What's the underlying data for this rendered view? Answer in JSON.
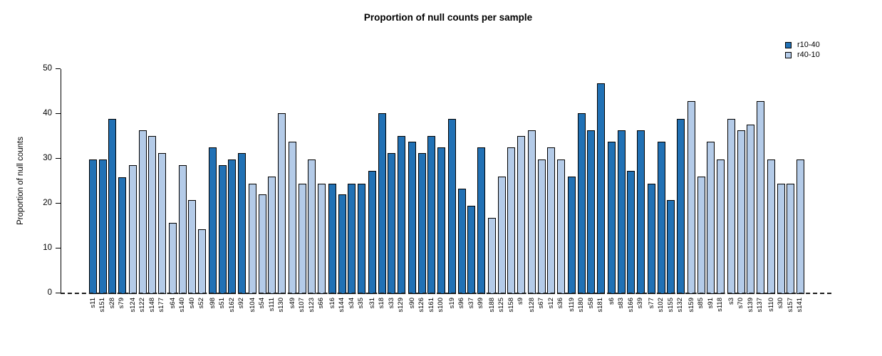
{
  "chart_data": {
    "type": "bar",
    "title": "Proportion of null counts per sample",
    "ylabel": "Proportion of null counts",
    "xlabel": "",
    "ylim": [
      0,
      50
    ],
    "yticks": [
      0,
      10,
      20,
      30,
      40,
      50
    ],
    "grid": false,
    "legend_position": "top-right",
    "baseline": {
      "y": 0,
      "style": "dashed"
    },
    "group_size": 4,
    "series": [
      {
        "name": "r10-40",
        "color": "#2171b5"
      },
      {
        "name": "r40-10",
        "color": "#b4cbe8"
      }
    ],
    "bars": [
      {
        "label": "s11",
        "value": 29.8,
        "series": "r10-40"
      },
      {
        "label": "s151",
        "value": 29.8,
        "series": "r10-40"
      },
      {
        "label": "s28",
        "value": 38.9,
        "series": "r10-40"
      },
      {
        "label": "s79",
        "value": 25.9,
        "series": "r10-40"
      },
      {
        "label": "s124",
        "value": 28.5,
        "series": "r40-10"
      },
      {
        "label": "s122",
        "value": 36.4,
        "series": "r40-10"
      },
      {
        "label": "s148",
        "value": 35.1,
        "series": "r40-10"
      },
      {
        "label": "s177",
        "value": 31.3,
        "series": "r40-10"
      },
      {
        "label": "s64",
        "value": 15.7,
        "series": "r40-10"
      },
      {
        "label": "s140",
        "value": 28.5,
        "series": "r40-10"
      },
      {
        "label": "s40",
        "value": 20.8,
        "series": "r40-10"
      },
      {
        "label": "s52",
        "value": 14.3,
        "series": "r40-10"
      },
      {
        "label": "s98",
        "value": 32.6,
        "series": "r10-40"
      },
      {
        "label": "s51",
        "value": 28.5,
        "series": "r10-40"
      },
      {
        "label": "s162",
        "value": 29.8,
        "series": "r10-40"
      },
      {
        "label": "s92",
        "value": 31.2,
        "series": "r10-40"
      },
      {
        "label": "s104",
        "value": 24.5,
        "series": "r40-10"
      },
      {
        "label": "s54",
        "value": 22.1,
        "series": "r40-10"
      },
      {
        "label": "s111",
        "value": 26.0,
        "series": "r40-10"
      },
      {
        "label": "s130",
        "value": 40.2,
        "series": "r40-10"
      },
      {
        "label": "s49",
        "value": 33.8,
        "series": "r40-10"
      },
      {
        "label": "s107",
        "value": 24.5,
        "series": "r40-10"
      },
      {
        "label": "s123",
        "value": 29.8,
        "series": "r40-10"
      },
      {
        "label": "s66",
        "value": 24.5,
        "series": "r40-10"
      },
      {
        "label": "s16",
        "value": 24.5,
        "series": "r10-40"
      },
      {
        "label": "s144",
        "value": 22.1,
        "series": "r10-40"
      },
      {
        "label": "s34",
        "value": 24.5,
        "series": "r10-40"
      },
      {
        "label": "s35",
        "value": 24.5,
        "series": "r10-40"
      },
      {
        "label": "s31",
        "value": 27.3,
        "series": "r10-40"
      },
      {
        "label": "s18",
        "value": 40.2,
        "series": "r10-40"
      },
      {
        "label": "s33",
        "value": 31.2,
        "series": "r10-40"
      },
      {
        "label": "s129",
        "value": 35.0,
        "series": "r10-40"
      },
      {
        "label": "s90",
        "value": 33.8,
        "series": "r10-40"
      },
      {
        "label": "s126",
        "value": 31.2,
        "series": "r10-40"
      },
      {
        "label": "s161",
        "value": 35.0,
        "series": "r10-40"
      },
      {
        "label": "s100",
        "value": 32.5,
        "series": "r10-40"
      },
      {
        "label": "s19",
        "value": 38.9,
        "series": "r10-40"
      },
      {
        "label": "s96",
        "value": 23.4,
        "series": "r10-40"
      },
      {
        "label": "s37",
        "value": 19.6,
        "series": "r10-40"
      },
      {
        "label": "s99",
        "value": 32.5,
        "series": "r10-40"
      },
      {
        "label": "s188",
        "value": 16.9,
        "series": "r40-10"
      },
      {
        "label": "s125",
        "value": 26.0,
        "series": "r40-10"
      },
      {
        "label": "s158",
        "value": 32.5,
        "series": "r40-10"
      },
      {
        "label": "s9",
        "value": 35.0,
        "series": "r40-10"
      },
      {
        "label": "s128",
        "value": 36.4,
        "series": "r40-10"
      },
      {
        "label": "s67",
        "value": 29.8,
        "series": "r40-10"
      },
      {
        "label": "s12",
        "value": 32.5,
        "series": "r40-10"
      },
      {
        "label": "s36",
        "value": 29.8,
        "series": "r40-10"
      },
      {
        "label": "s119",
        "value": 26.0,
        "series": "r10-40"
      },
      {
        "label": "s180",
        "value": 40.2,
        "series": "r10-40"
      },
      {
        "label": "s58",
        "value": 36.4,
        "series": "r10-40"
      },
      {
        "label": "s181",
        "value": 46.8,
        "series": "r10-40"
      },
      {
        "label": "s6",
        "value": 33.8,
        "series": "r10-40"
      },
      {
        "label": "s83",
        "value": 36.4,
        "series": "r10-40"
      },
      {
        "label": "s166",
        "value": 27.3,
        "series": "r10-40"
      },
      {
        "label": "s39",
        "value": 36.4,
        "series": "r10-40"
      },
      {
        "label": "s77",
        "value": 24.5,
        "series": "r10-40"
      },
      {
        "label": "s102",
        "value": 33.8,
        "series": "r10-40"
      },
      {
        "label": "s155",
        "value": 20.8,
        "series": "r10-40"
      },
      {
        "label": "s132",
        "value": 38.9,
        "series": "r10-40"
      },
      {
        "label": "s159",
        "value": 42.9,
        "series": "r40-10"
      },
      {
        "label": "s85",
        "value": 26.0,
        "series": "r40-10"
      },
      {
        "label": "s91",
        "value": 33.8,
        "series": "r40-10"
      },
      {
        "label": "s118",
        "value": 29.8,
        "series": "r40-10"
      },
      {
        "label": "s3",
        "value": 38.9,
        "series": "r40-10"
      },
      {
        "label": "s70",
        "value": 36.4,
        "series": "r40-10"
      },
      {
        "label": "s139",
        "value": 37.6,
        "series": "r40-10"
      },
      {
        "label": "s137",
        "value": 42.9,
        "series": "r40-10"
      },
      {
        "label": "s110",
        "value": 29.8,
        "series": "r40-10"
      },
      {
        "label": "s30",
        "value": 24.5,
        "series": "r40-10"
      },
      {
        "label": "s157",
        "value": 24.5,
        "series": "r40-10"
      },
      {
        "label": "s141",
        "value": 29.8,
        "series": "r40-10"
      }
    ]
  }
}
